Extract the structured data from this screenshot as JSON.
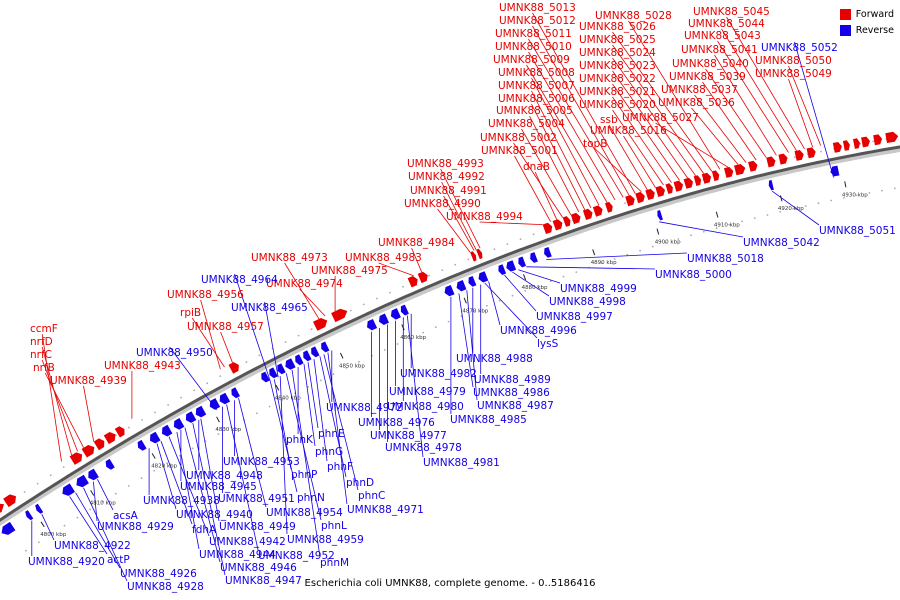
{
  "caption": "Escherichia coli UMNK88, complete genome. - 0..5186416",
  "legend": {
    "forward_label": "Forward",
    "reverse_label": "Reverse",
    "forward_color": "#e60000",
    "reverse_color": "#1400e6"
  },
  "ticks": [
    "4800 kbp",
    "4810 kbp",
    "4820 kbp",
    "4830 kbp",
    "4840 kbp",
    "4850 kbp",
    "4860 kbp",
    "4870 kbp",
    "4880 kbp",
    "4890 kbp",
    "4900 kbp",
    "4910 kbp",
    "4920 kbp",
    "4930 kbp"
  ],
  "forward_labels": [
    "ccmF",
    "nrfD",
    "nrfC",
    "nrfB",
    "UMNK88_4939",
    "UMNK88_4943",
    "rpiB",
    "UMNK88_4956",
    "UMNK88_4957",
    "UMNK88_4973",
    "UMNK88_4974",
    "UMNK88_4975",
    "UMNK88_4983",
    "UMNK88_4984",
    "UMNK88_4994",
    "UMNK88_4990",
    "UMNK88_4991",
    "UMNK88_4992",
    "UMNK88_4993",
    "UMNK88_5001",
    "dnaB",
    "UMNK88_5002",
    "UMNK88_5004",
    "UMNK88_5005",
    "UMNK88_5006",
    "UMNK88_5007",
    "UMNK88_5008",
    "UMNK88_5009",
    "UMNK88_5010",
    "UMNK88_5011",
    "UMNK88_5012",
    "UMNK88_5013",
    "topB",
    "ssb",
    "UMNK88_5016",
    "UMNK88_5020",
    "UMNK88_5021",
    "UMNK88_5022",
    "UMNK88_5023",
    "UMNK88_5024",
    "UMNK88_5025",
    "UMNK88_5026",
    "UMNK88_5028",
    "UMNK88_5027",
    "UMNK88_5036",
    "UMNK88_5037",
    "UMNK88_5039",
    "UMNK88_5040",
    "UMNK88_5041",
    "UMNK88_5043",
    "UMNK88_5044",
    "UMNK88_5045",
    "UMNK88_5049",
    "UMNK88_5050"
  ],
  "reverse_labels": [
    "UMNK88_4920",
    "UMNK88_4922",
    "actP",
    "UMNK88_4926",
    "UMNK88_4928",
    "acsA",
    "UMNK88_4929",
    "UMNK88_4938",
    "UMNK88_4940",
    "fdhA",
    "UMNK88_4942",
    "UMNK88_4944",
    "UMNK88_4945",
    "UMNK88_4946",
    "UMNK88_4947",
    "UMNK88_4948",
    "UMNK88_4949",
    "UMNK88_4950",
    "UMNK88_4951",
    "UMNK88_4952",
    "UMNK88_4953",
    "UMNK88_4954",
    "phnN",
    "phnP",
    "UMNK88_4959",
    "phnL",
    "phnM",
    "phnK",
    "phnG",
    "phnE",
    "phnF",
    "phnD",
    "phnC",
    "UMNK88_4971",
    "UMNK88_4972",
    "UMNK88_4964",
    "UMNK88_4965",
    "UMNK88_4976",
    "UMNK88_4977",
    "UMNK88_4978",
    "UMNK88_4979",
    "UMNK88_4980",
    "UMNK88_4981",
    "UMNK88_4982",
    "UMNK88_4985",
    "UMNK88_4986",
    "UMNK88_4987",
    "UMNK88_4988",
    "UMNK88_4989",
    "lysS",
    "UMNK88_4996",
    "UMNK88_4997",
    "UMNK88_4998",
    "UMNK88_4999",
    "UMNK88_5000",
    "UMNK88_5018",
    "UMNK88_5042",
    "UMNK88_5051",
    "UMNK88_5052"
  ]
}
